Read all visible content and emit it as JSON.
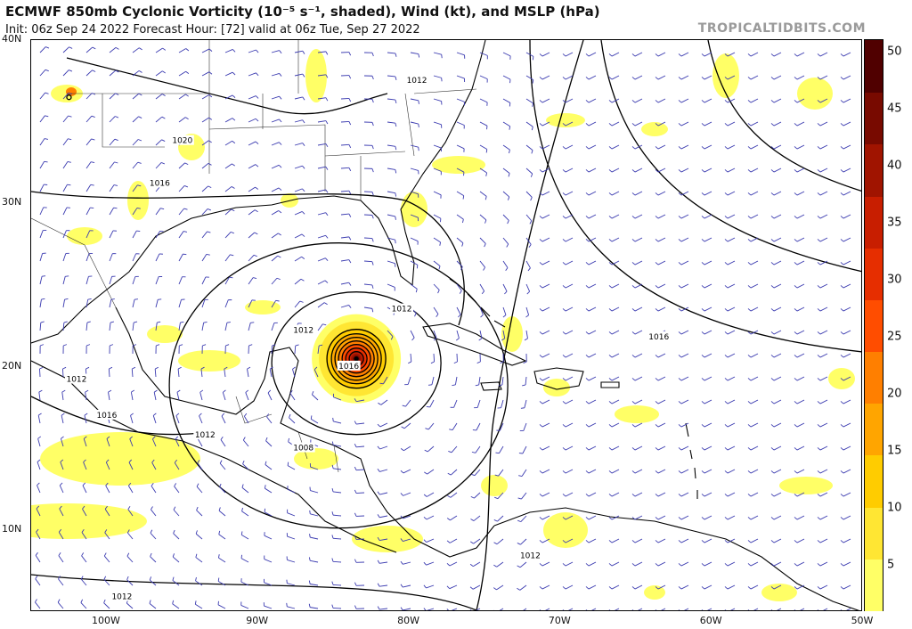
{
  "header": {
    "title": "ECMWF 850mb Cyclonic Vorticity (10⁻⁵ s⁻¹, shaded), Wind (kt), and MSLP (hPa)",
    "subtitle": "Init: 06z Sep 24 2022   Forecast Hour: [72]   valid at 06z Tue, Sep 27 2022",
    "brand": "TROPICALTIDBITS.COM"
  },
  "map": {
    "lon_range": [
      -105,
      -50
    ],
    "lat_range": [
      5,
      40
    ],
    "lat_labels": [
      "40N",
      "30N",
      "20N",
      "10N"
    ],
    "lon_labels": [
      "100W",
      "90W",
      "80W",
      "70W",
      "60W",
      "50W"
    ],
    "cyclone_center": {
      "lat": 20.5,
      "lon": -83.5
    },
    "isobar_labels": [
      {
        "text": "1012",
        "lat": 37.5,
        "lon": -79.5
      },
      {
        "text": "1020",
        "lat": 33.8,
        "lon": -95.0
      },
      {
        "text": "1016",
        "lat": 31.2,
        "lon": -96.5
      },
      {
        "text": "1012",
        "lat": 22.2,
        "lon": -87.0
      },
      {
        "text": "1016",
        "lat": 20.0,
        "lon": -84.0
      },
      {
        "text": "1012",
        "lat": 19.2,
        "lon": -102.0
      },
      {
        "text": "1016",
        "lat": 17.0,
        "lon": -100.0
      },
      {
        "text": "1012",
        "lat": 15.8,
        "lon": -93.5
      },
      {
        "text": "1008",
        "lat": 15.0,
        "lon": -87.0
      },
      {
        "text": "1016",
        "lat": 21.8,
        "lon": -63.5
      },
      {
        "text": "1012",
        "lat": 23.5,
        "lon": -80.5
      },
      {
        "text": "1012",
        "lat": 8.4,
        "lon": -72.0
      },
      {
        "text": "1012",
        "lat": 5.9,
        "lon": -99.0
      }
    ]
  },
  "colorbar": {
    "ticks": [
      "5",
      "10",
      "15",
      "20",
      "25",
      "30",
      "35",
      "40",
      "45",
      "50"
    ],
    "min": 1,
    "max": 51,
    "colors": [
      "#ffff66",
      "#ffe633",
      "#ffcc00",
      "#ffa500",
      "#ff7f00",
      "#ff4d00",
      "#e62e00",
      "#c81e00",
      "#a01400",
      "#780a00",
      "#500000"
    ]
  },
  "colors": {
    "isobar": "#000000",
    "coast": "#000000",
    "wind_barb": "#3b3bb0",
    "vorticity_low": "#ffff3b",
    "vorticity_high": "#8b0000"
  },
  "icons": [
    "wind-barb-icon",
    "cyclone-center-icon"
  ]
}
